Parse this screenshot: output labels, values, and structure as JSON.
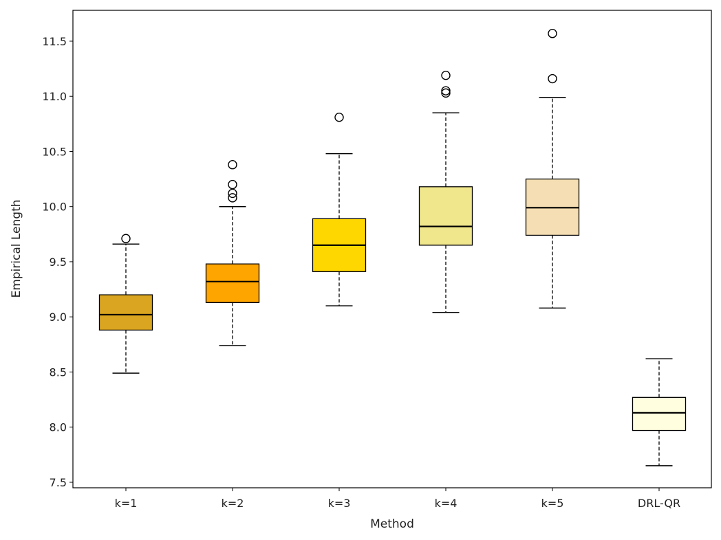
{
  "chart_data": {
    "type": "boxplot",
    "title": "",
    "xlabel": "Method",
    "ylabel": "Empirical Length",
    "ylim": [
      7.45,
      11.78
    ],
    "yticks": [
      7.5,
      8.0,
      8.5,
      9.0,
      9.5,
      10.0,
      10.5,
      11.0,
      11.5
    ],
    "ytick_labels": [
      "7.5",
      "8.0",
      "8.5",
      "9.0",
      "9.5",
      "10.0",
      "10.5",
      "11.0",
      "11.5"
    ],
    "grid": false,
    "categories": [
      "k=1",
      "k=2",
      "k=3",
      "k=4",
      "k=5",
      "DRL-QR"
    ],
    "boxes": [
      {
        "name": "k=1",
        "color": "#DAA520",
        "whisker_low": 8.49,
        "q1": 8.88,
        "median": 9.02,
        "q3": 9.2,
        "whisker_high": 9.66,
        "outliers": [
          9.71
        ]
      },
      {
        "name": "k=2",
        "color": "#FFA500",
        "whisker_low": 8.74,
        "q1": 9.13,
        "median": 9.32,
        "q3": 9.48,
        "whisker_high": 10.0,
        "outliers": [
          10.08,
          10.12,
          10.2,
          10.38
        ]
      },
      {
        "name": "k=3",
        "color": "#FFD700",
        "whisker_low": 9.1,
        "q1": 9.41,
        "median": 9.65,
        "q3": 9.89,
        "whisker_high": 10.48,
        "outliers": [
          10.81
        ]
      },
      {
        "name": "k=4",
        "color": "#F0E68C",
        "whisker_low": 9.04,
        "q1": 9.65,
        "median": 9.82,
        "q3": 10.18,
        "whisker_high": 10.85,
        "outliers": [
          11.03,
          11.05,
          11.19
        ]
      },
      {
        "name": "k=5",
        "color": "#F5DEB3",
        "whisker_low": 9.08,
        "q1": 9.74,
        "median": 9.99,
        "q3": 10.25,
        "whisker_high": 10.99,
        "outliers": [
          11.16,
          11.57
        ]
      },
      {
        "name": "DRL-QR",
        "color": "#FFFFE0",
        "whisker_low": 7.65,
        "q1": 7.97,
        "median": 8.13,
        "q3": 8.27,
        "whisker_high": 8.62,
        "outliers": []
      }
    ]
  }
}
